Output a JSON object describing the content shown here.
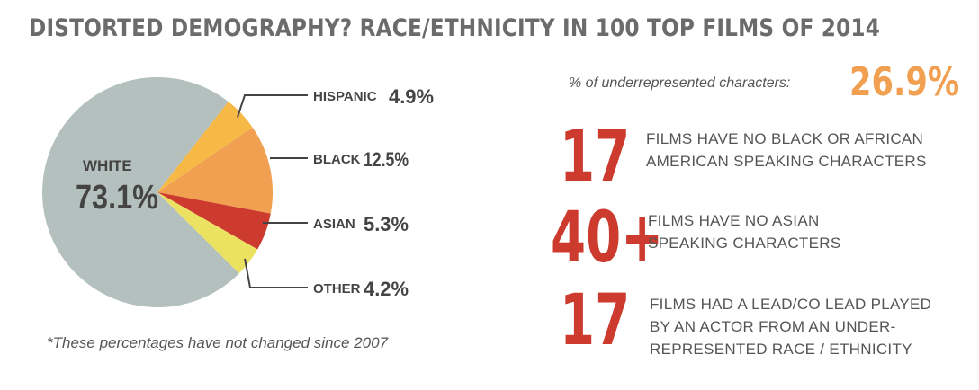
{
  "title": "DISTORTED DEMOGRAPHY? RACE/ETHNICITY IN 100 TOP FILMS OF 2014",
  "footnote": "*These percentages have not changed since 2007",
  "underrepresented": {
    "label": "% of underrepresented characters:",
    "value": "26.9%"
  },
  "stats": [
    {
      "number": "17",
      "text": "FILMS HAVE NO BLACK OR AFRICAN\nAMERICAN SPEAKING CHARACTERS"
    },
    {
      "number": "40+",
      "text": "FILMS HAVE NO ASIAN\nSPEAKING CHARACTERS"
    },
    {
      "number": "17",
      "text": "FILMS HAD A LEAD/CO LEAD PLAYED\nBY AN ACTOR FROM AN UNDER-\nREPRESENTED RACE / ETHNICITY"
    }
  ],
  "colors": {
    "white": "#b4c0be",
    "hispanic": "#f7b945",
    "black": "#f0a050",
    "asian": "#cc3b2e",
    "other": "#ebe262",
    "accent_red": "#cc3b2e",
    "accent_orange": "#f0a050"
  },
  "chart_data": {
    "type": "pie",
    "slices": [
      {
        "name": "WHITE",
        "label": "73.1%",
        "value": 73.1,
        "color": "#b4c0be"
      },
      {
        "name": "HISPANIC",
        "label": "4.9%",
        "value": 4.9,
        "color": "#f7b945"
      },
      {
        "name": "BLACK",
        "label": "12.5%",
        "value": 12.5,
        "color": "#f0a050"
      },
      {
        "name": "ASIAN",
        "label": "5.3%",
        "value": 5.3,
        "color": "#cc3b2e"
      },
      {
        "name": "OTHER",
        "label": "4.2%",
        "value": 4.2,
        "color": "#ebe262"
      }
    ]
  }
}
